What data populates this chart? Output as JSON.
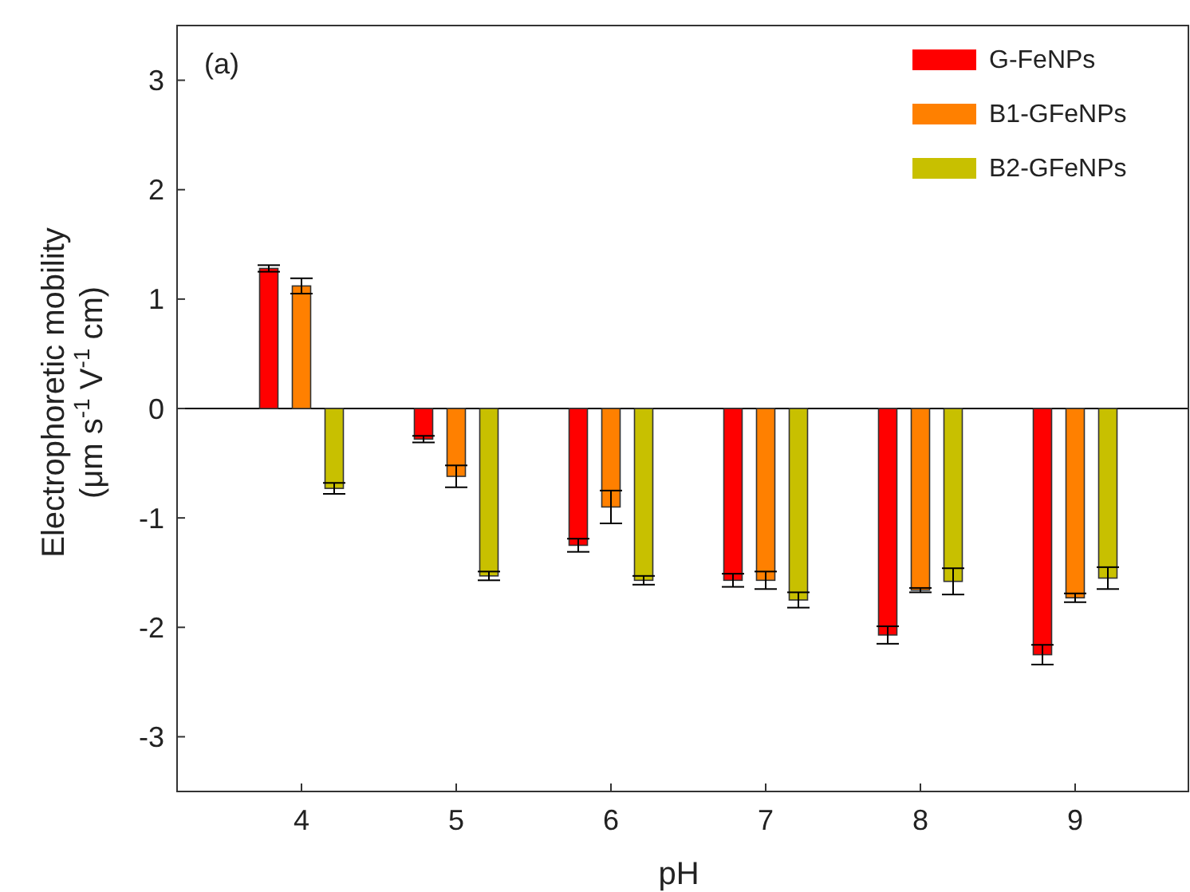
{
  "chart_data": {
    "type": "bar",
    "xlabel": "pH",
    "ylabel": "Electrophoretic mobility\n(μm s$^{-1}$ V$^{-1}$ cm)",
    "annotations": [
      "(a)"
    ],
    "categories": [
      "4",
      "5",
      "6",
      "7",
      "8",
      "9"
    ],
    "series": [
      {
        "name": "G-FeNPs",
        "color": "#ff0000",
        "values": [
          1.28,
          -0.28,
          -1.25,
          -1.57,
          -2.07,
          -2.25
        ],
        "errors": [
          0.03,
          0.03,
          0.06,
          0.06,
          0.08,
          0.09
        ]
      },
      {
        "name": "B1-GFeNPs",
        "color": "#ff8000",
        "values": [
          1.12,
          -0.62,
          -0.9,
          -1.57,
          -1.66,
          -1.73
        ],
        "errors": [
          0.07,
          0.1,
          0.15,
          0.08,
          0.02,
          0.04
        ]
      },
      {
        "name": "B2-GFeNPs",
        "color": "#c8c000",
        "values": [
          -0.73,
          -1.53,
          -1.57,
          -1.75,
          -1.58,
          -1.55
        ],
        "errors": [
          0.05,
          0.04,
          0.04,
          0.07,
          0.12,
          0.1
        ]
      }
    ],
    "ylim": [
      -3.5,
      3.5
    ],
    "yticks": [
      -3,
      -2,
      -1,
      0,
      1,
      2,
      3
    ],
    "ref_lines": [
      {
        "axis": "y",
        "value": 0
      }
    ],
    "legend": "top right",
    "grid": false
  }
}
